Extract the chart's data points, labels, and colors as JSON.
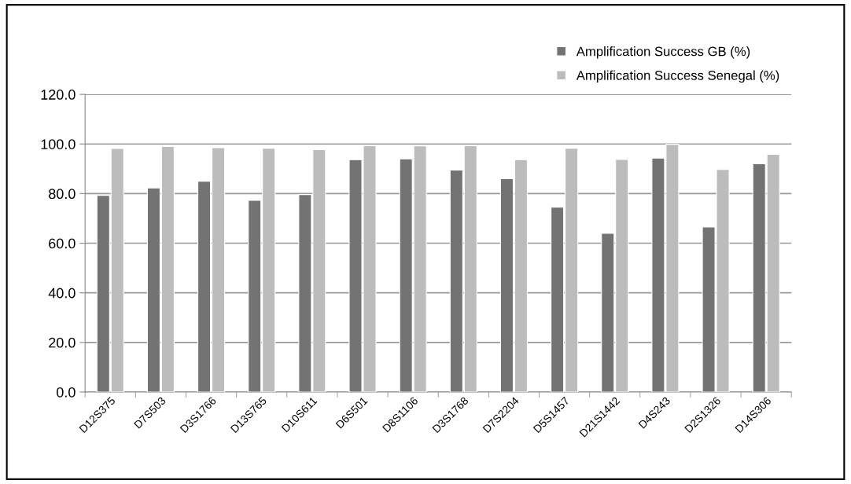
{
  "chart_data": {
    "type": "bar",
    "categories": [
      "D12S375",
      "D7S503",
      "D3S1766",
      "D13S765",
      "D10S611",
      "D6S501",
      "D8S1106",
      "D3S1768",
      "D7S2204",
      "D5S1457",
      "D21S1442",
      "D4S243",
      "D2S1326",
      "D14S306"
    ],
    "series": [
      {
        "name": "Amplification Success GB (%)",
        "color": "#737373",
        "values": [
          79.3,
          82.3,
          85.0,
          77.3,
          79.6,
          93.7,
          94.0,
          89.5,
          86.0,
          74.5,
          64.0,
          94.3,
          66.5,
          92.0
        ]
      },
      {
        "name": "Amplification Success Senegal (%)",
        "color": "#bcbcbc",
        "values": [
          98.2,
          99.0,
          98.5,
          98.3,
          97.7,
          99.3,
          99.2,
          99.3,
          93.7,
          98.3,
          93.8,
          99.9,
          89.7,
          95.8
        ]
      }
    ],
    "ylim": [
      0,
      120
    ],
    "yticks": [
      {
        "value": 0,
        "label": "0.0"
      },
      {
        "value": 20,
        "label": "20.0"
      },
      {
        "value": 40,
        "label": "40.0"
      },
      {
        "value": 60,
        "label": "60.0"
      },
      {
        "value": 80,
        "label": "80.0"
      },
      {
        "value": 100,
        "label": "100.0"
      },
      {
        "value": 120,
        "label": "120.0"
      }
    ],
    "grid": "y",
    "legend": "top right"
  }
}
